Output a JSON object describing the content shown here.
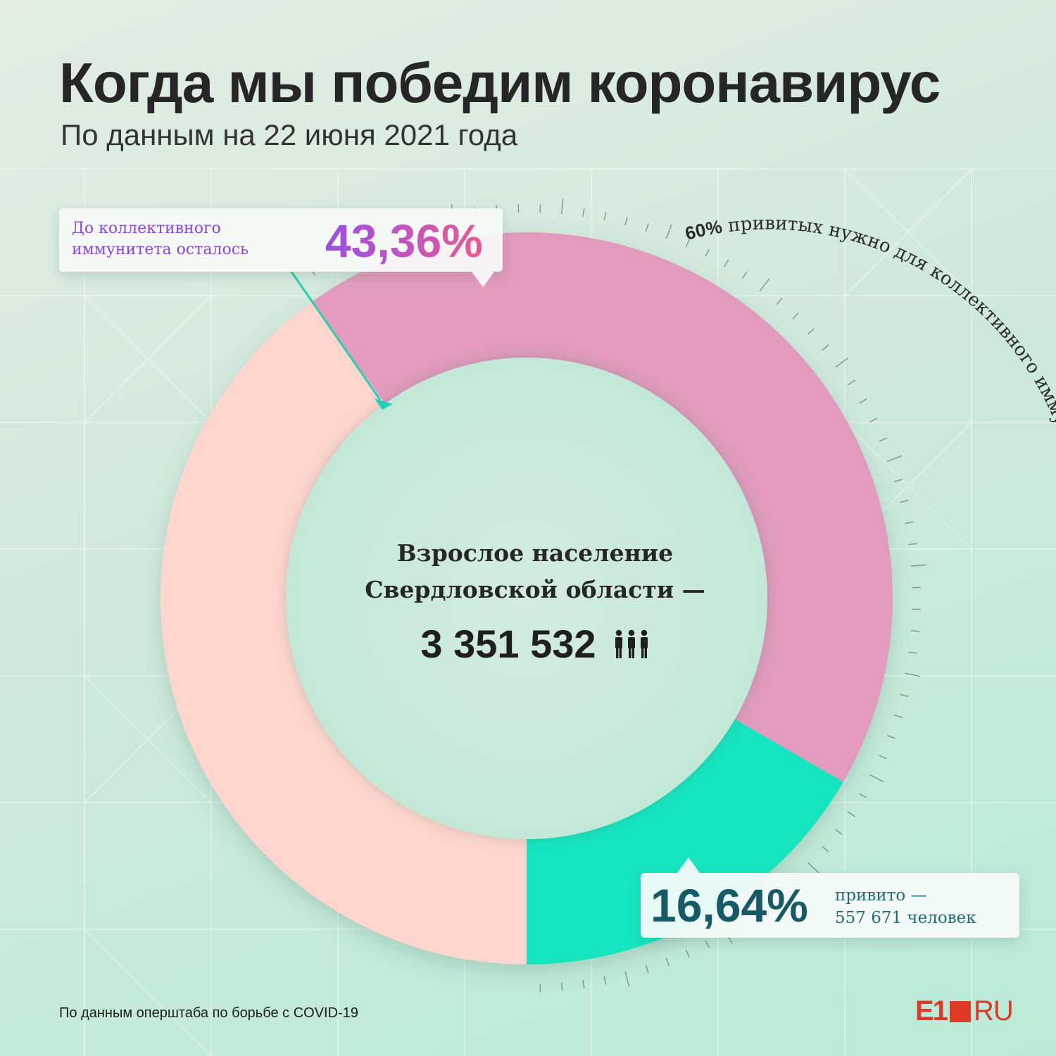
{
  "header": {
    "title": "Когда мы победим коронавирус",
    "subtitle": "По данным на 22 июня 2021 года"
  },
  "center": {
    "line1": "Взрослое население",
    "line2": "Свердловской области —",
    "population": "3 351 532",
    "icon": "people-icon"
  },
  "callouts": {
    "remaining_label": "До коллективного иммунитета осталось",
    "remaining_value": "43,36%",
    "vaccinated_value": "16,64%",
    "vaccinated_label_line1": "привито —",
    "vaccinated_label_line2": "557 671 человек"
  },
  "arc_label": {
    "bold": "60%",
    "text": " привитых нужно для коллективного иммунитета"
  },
  "footer": {
    "source": "По данным оперштаба по борьбе с COVID-19",
    "logo_left": "E1",
    "logo_right": "RU"
  },
  "colors": {
    "vaccinated": "#12e6c0",
    "remaining": "#e39bbd",
    "rest": "#ffd6cd",
    "accent_purple": "#8c43e0",
    "accent_teal": "#165a66",
    "logo": "#e03a26"
  },
  "chart_data": {
    "type": "pie",
    "title": "Когда мы победим коронавирус",
    "total": 3351532,
    "series": [
      {
        "name": "привито",
        "value": 16.64,
        "people": 557671,
        "color": "#12e6c0"
      },
      {
        "name": "До коллективного иммунитета осталось",
        "value": 43.36,
        "color": "#e39bbd"
      },
      {
        "value": 40.0,
        "color": "#ffd6cd"
      }
    ],
    "threshold_percent": 60,
    "direction": "counterclockwise-from-bottom"
  }
}
